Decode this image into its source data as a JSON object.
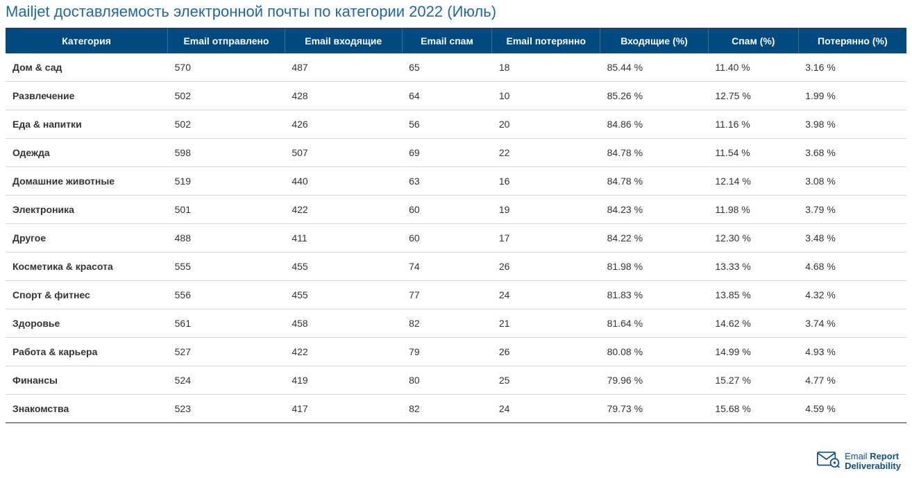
{
  "title": "Mailjet доставляемость электронной почты по категории 2022 (Июль)",
  "colors": {
    "title_color": "#1e6a9c",
    "header_bg": "#004a80",
    "header_text": "#ffffff",
    "row_border": "#d9d9d9",
    "top_border": "#333333",
    "text_color": "#333333",
    "logo_color": "#0d4f8b"
  },
  "columns": [
    "Категория",
    "Email отправлено",
    "Email входящие",
    "Email спам",
    "Email потерянно",
    "Входящие (%)",
    "Спам (%)",
    "Потерянно (%)"
  ],
  "rows": [
    [
      "Дом & сад",
      "570",
      "487",
      "65",
      "18",
      "85.44 %",
      "11.40 %",
      "3.16 %"
    ],
    [
      "Развлечение",
      "502",
      "428",
      "64",
      "10",
      "85.26 %",
      "12.75 %",
      "1.99 %"
    ],
    [
      "Еда & напитки",
      "502",
      "426",
      "56",
      "20",
      "84.86 %",
      "11.16 %",
      "3.98 %"
    ],
    [
      "Одежда",
      "598",
      "507",
      "69",
      "22",
      "84.78 %",
      "11.54 %",
      "3.68 %"
    ],
    [
      "Домашние животные",
      "519",
      "440",
      "63",
      "16",
      "84.78 %",
      "12.14 %",
      "3.08 %"
    ],
    [
      "Электроника",
      "501",
      "422",
      "60",
      "19",
      "84.23 %",
      "11.98 %",
      "3.79 %"
    ],
    [
      "Другое",
      "488",
      "411",
      "60",
      "17",
      "84.22 %",
      "12.30 %",
      "3.48 %"
    ],
    [
      "Косметика & красота",
      "555",
      "455",
      "74",
      "26",
      "81.98 %",
      "13.33 %",
      "4.68 %"
    ],
    [
      "Спорт & фитнес",
      "556",
      "455",
      "77",
      "24",
      "81.83 %",
      "13.85 %",
      "4.32 %"
    ],
    [
      "Здоровье",
      "561",
      "458",
      "82",
      "21",
      "81.64 %",
      "14.62 %",
      "3.74 %"
    ],
    [
      "Работа & карьера",
      "527",
      "422",
      "79",
      "26",
      "80.08 %",
      "14.99 %",
      "4.93 %"
    ],
    [
      "Финансы",
      "524",
      "419",
      "80",
      "25",
      "79.96 %",
      "15.27 %",
      "4.77 %"
    ],
    [
      "Знакомства",
      "523",
      "417",
      "82",
      "24",
      "79.73 %",
      "15.68 %",
      "4.59 %"
    ]
  ],
  "column_widths": [
    "18%",
    "13%",
    "13%",
    "10%",
    "12%",
    "12%",
    "10%",
    "12%"
  ],
  "logo": {
    "line1_a": "Email ",
    "line1_b": "Report",
    "line2": "Deliverability"
  }
}
